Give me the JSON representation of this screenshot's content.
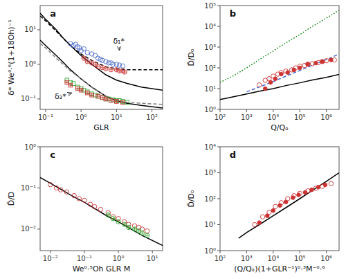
{
  "chart_data": [
    {
      "type": "scatter",
      "title": "a",
      "xlabel": "GLR",
      "ylabel": "δ* We⁰·⁶(1+18Oh)⁻¹",
      "log": true,
      "grid": false,
      "xlim": [
        0.07,
        200
      ],
      "ylim": [
        0.05,
        50
      ],
      "xticks": [
        {
          "value": 0.1,
          "label": "10⁻¹"
        },
        {
          "value": 1,
          "label": "10⁰"
        },
        {
          "value": 10,
          "label": "10¹"
        },
        {
          "value": 100,
          "label": "10²"
        }
      ],
      "yticks": [
        {
          "value": 0.1,
          "label": "10⁻¹"
        },
        {
          "value": 1,
          "label": "10⁰"
        },
        {
          "value": 10,
          "label": "10¹"
        }
      ],
      "series": [
        {
          "type": "line",
          "color": "#000000",
          "line_style": "solid",
          "x": [
            0.07,
            0.1,
            0.2,
            0.3,
            0.5,
            1.0,
            2.0,
            5.0,
            10.0,
            20.0,
            50.0,
            200.0
          ],
          "values": [
            30.0,
            20.0,
            10.0,
            6.0,
            3.5,
            1.8,
            1.0,
            0.5,
            0.35,
            0.28,
            0.22,
            0.18
          ]
        },
        {
          "type": "line",
          "color": "#000000",
          "line_style": "solid",
          "x": [
            0.07,
            0.1,
            0.2,
            0.3,
            0.5,
            1.0,
            2.0,
            5.0,
            10.0,
            20.0,
            50.0,
            200.0
          ],
          "values": [
            5.0,
            3.5,
            1.8,
            1.2,
            0.7,
            0.38,
            0.22,
            0.12,
            0.09,
            0.075,
            0.065,
            0.055
          ]
        },
        {
          "type": "line",
          "color": "#000000",
          "line_style": "dashed",
          "x": [
            0.07,
            0.1,
            0.2,
            0.5,
            1.0,
            2.0,
            5.0,
            10.0,
            20.0,
            50.0,
            200.0
          ],
          "values": [
            25.0,
            18.0,
            9.0,
            3.5,
            2.0,
            1.3,
            0.85,
            0.75,
            0.7,
            0.7,
            0.7
          ]
        },
        {
          "type": "line",
          "color": "#808080",
          "line_style": "dashed",
          "x": [
            0.07,
            0.1,
            0.2,
            0.5,
            1.0,
            2.0,
            5.0,
            10.0,
            20.0,
            50.0,
            200.0
          ],
          "values": [
            4.0,
            3.0,
            1.5,
            0.65,
            0.38,
            0.22,
            0.12,
            0.09,
            0.08,
            0.075,
            0.07
          ]
        },
        {
          "type": "scatter",
          "color": "#4466cc",
          "marker": "circle-open",
          "x": [
            0.5,
            0.6,
            0.7,
            0.8,
            0.9,
            1.0,
            1.2,
            1.5,
            2.0,
            2.5,
            3.0,
            3.5,
            4.0,
            5.0,
            6.0,
            7.0,
            8.0,
            10.0,
            12.0,
            15.0
          ],
          "values": [
            4.0,
            3.5,
            3.8,
            3.2,
            3.0,
            2.5,
            2.8,
            2.2,
            2.0,
            1.8,
            1.5,
            1.4,
            1.3,
            1.2,
            1.1,
            1.1,
            1.0,
            1.0,
            0.95,
            0.9
          ]
        },
        {
          "type": "scatter",
          "color": "#cc3333",
          "marker": "circle-open-plus",
          "x": [
            1.2,
            1.5,
            2.0,
            2.5,
            3.0,
            4.0,
            5.0,
            7.0,
            10.0,
            12.0,
            15.0,
            17.0
          ],
          "values": [
            1.5,
            1.2,
            1.1,
            1.0,
            0.85,
            0.8,
            0.75,
            0.7,
            0.7,
            0.65,
            0.65,
            0.6
          ]
        },
        {
          "type": "scatter",
          "color": "#33aa33",
          "marker": "square-open",
          "x": [
            0.4,
            0.5,
            0.6,
            0.8,
            1.0,
            1.2,
            1.5,
            2.0,
            2.5,
            3.0,
            4.0,
            5.0,
            6.0,
            8.0,
            10.0,
            12.0,
            15.0,
            20.0
          ],
          "values": [
            0.35,
            0.3,
            0.28,
            0.22,
            0.2,
            0.18,
            0.16,
            0.14,
            0.13,
            0.12,
            0.11,
            0.1,
            0.1,
            0.095,
            0.09,
            0.09,
            0.085,
            0.08
          ]
        },
        {
          "type": "scatter",
          "color": "#cc3333",
          "marker": "square-open-plus",
          "x": [
            0.4,
            0.5,
            0.8,
            1.0,
            1.5,
            2.0,
            3.0,
            4.0,
            5.0,
            7.0,
            10.0,
            15.0
          ],
          "values": [
            0.3,
            0.25,
            0.2,
            0.18,
            0.15,
            0.13,
            0.12,
            0.11,
            0.1,
            0.09,
            0.085,
            0.08
          ]
        }
      ],
      "annotations": [
        {
          "text": "δ₁*",
          "xy": [
            12.0,
            2.5
          ],
          "xytext": [
            8.0,
            4.0
          ]
        },
        {
          "text": "δ₂*",
          "xy": [
            0.55,
            0.15
          ],
          "xytext": [
            0.18,
            0.1
          ]
        }
      ]
    },
    {
      "type": "scatter",
      "title": "b",
      "xlabel": "Q/Qₒ",
      "ylabel": "D̄/Dₒ",
      "log": true,
      "grid": false,
      "xlim": [
        100,
        3000000
      ],
      "ylim": [
        1,
        100000
      ],
      "xticks": [
        {
          "value": 100,
          "label": "10²"
        },
        {
          "value": 1000,
          "label": "10³"
        },
        {
          "value": 10000,
          "label": "10⁴"
        },
        {
          "value": 100000,
          "label": "10⁵"
        },
        {
          "value": 1000000,
          "label": "10⁶"
        }
      ],
      "yticks": [
        {
          "value": 1,
          "label": "10⁰"
        },
        {
          "value": 10,
          "label": "10¹"
        },
        {
          "value": 100,
          "label": "10²"
        },
        {
          "value": 1000,
          "label": "10³"
        },
        {
          "value": 10000,
          "label": "10⁴"
        },
        {
          "value": 100000,
          "label": "10⁵"
        }
      ],
      "series": [
        {
          "type": "line",
          "color": "#000000",
          "line_style": "solid",
          "x": [
            100,
            300,
            1000,
            3000,
            10000,
            30000,
            100000,
            300000,
            1000000,
            3000000
          ],
          "values": [
            3.0,
            4.0,
            5.5,
            7.5,
            10.0,
            14.0,
            19.0,
            26.0,
            35.0,
            48.0
          ]
        },
        {
          "type": "line",
          "color": "#008000",
          "line_style": "dotted",
          "x": [
            100,
            300,
            1000,
            3000,
            10000,
            30000,
            100000,
            300000,
            1000000,
            3000000
          ],
          "values": [
            20.0,
            40.0,
            100.0,
            250.0,
            650.0,
            1600.0,
            4000.0,
            10000.0,
            25000.0,
            60000.0
          ]
        },
        {
          "type": "line",
          "color": "#4466cc",
          "line_style": "dashed",
          "x": [
            1000,
            3000,
            10000,
            30000,
            100000,
            300000,
            1000000,
            3000000
          ],
          "values": [
            7.0,
            12.0,
            22.0,
            40.0,
            74.0,
            135.0,
            250.0,
            460.0
          ]
        },
        {
          "type": "scatter",
          "color": "#cc3333",
          "marker": "circle-open",
          "x": [
            3000,
            5000,
            7000,
            10000,
            15000,
            20000,
            30000,
            50000,
            70000,
            100000,
            150000,
            200000,
            300000,
            500000,
            700000,
            1000000,
            2000000
          ],
          "values": [
            15,
            25,
            30,
            40,
            50,
            60,
            70,
            80,
            100,
            120,
            130,
            150,
            160,
            180,
            200,
            220,
            240
          ]
        },
        {
          "type": "scatter",
          "color": "#cc3333",
          "marker": "circle-filled",
          "x": [
            5000,
            8000,
            12000,
            20000,
            35000,
            60000,
            100000,
            200000,
            400000,
            700000,
            1500000
          ],
          "values": [
            10,
            20,
            30,
            50,
            60,
            80,
            100,
            150,
            170,
            200,
            240
          ]
        }
      ]
    },
    {
      "type": "scatter",
      "title": "c",
      "xlabel": "We⁰·⁵Oh GLR M",
      "ylabel": "D̄/D",
      "log": true,
      "grid": false,
      "xlim": [
        0.005,
        20
      ],
      "ylim": [
        0.003,
        1.0
      ],
      "xticks": [
        {
          "value": 0.01,
          "label": "10⁻²"
        },
        {
          "value": 0.1,
          "label": "10⁻¹"
        },
        {
          "value": 1,
          "label": "10⁰"
        },
        {
          "value": 10,
          "label": "10¹"
        }
      ],
      "yticks": [
        {
          "value": 0.01,
          "label": "10⁻²"
        },
        {
          "value": 0.1,
          "label": "10⁻¹"
        },
        {
          "value": 1,
          "label": "10⁰"
        }
      ],
      "series": [
        {
          "type": "line",
          "color": "#000000",
          "line_style": "solid",
          "x": [
            0.005,
            0.01,
            0.05,
            0.1,
            0.5,
            1.0,
            5.0,
            20.0
          ],
          "values": [
            0.18,
            0.13,
            0.06,
            0.045,
            0.02,
            0.015,
            0.007,
            0.004
          ]
        },
        {
          "type": "scatter",
          "color": "#cc3333",
          "marker": "circle-open",
          "x": [
            0.01,
            0.015,
            0.02,
            0.03,
            0.05,
            0.07,
            0.1,
            0.15,
            0.2,
            0.3,
            0.5,
            0.7,
            1.0,
            1.5,
            2.0,
            3.0,
            4.0,
            5.0,
            7.0
          ],
          "values": [
            0.12,
            0.1,
            0.09,
            0.08,
            0.065,
            0.055,
            0.05,
            0.04,
            0.035,
            0.03,
            0.025,
            0.02,
            0.018,
            0.015,
            0.013,
            0.012,
            0.011,
            0.01,
            0.009
          ]
        },
        {
          "type": "scatter",
          "color": "#33aa33",
          "marker": "circle-open-plus",
          "x": [
            0.5,
            0.7,
            1.0,
            1.5,
            2.0,
            3.0,
            4.0,
            5.0,
            7.0
          ],
          "values": [
            0.022,
            0.018,
            0.015,
            0.013,
            0.011,
            0.01,
            0.009,
            0.008,
            0.007
          ]
        }
      ]
    },
    {
      "type": "scatter",
      "title": "d",
      "xlabel": "(Q/Qₒ)(1+GLR⁻¹)⁰·³M⁻⁰·⁶",
      "ylabel": "D̄/Dₒ",
      "log": true,
      "grid": false,
      "xlim": [
        100,
        3000000
      ],
      "ylim": [
        1,
        10000
      ],
      "xticks": [
        {
          "value": 100,
          "label": "10²"
        },
        {
          "value": 1000,
          "label": "10³"
        },
        {
          "value": 10000,
          "label": "10⁴"
        },
        {
          "value": 100000,
          "label": "10⁵"
        },
        {
          "value": 1000000,
          "label": "10⁶"
        }
      ],
      "yticks": [
        {
          "value": 1,
          "label": "10⁰"
        },
        {
          "value": 10,
          "label": "10¹"
        },
        {
          "value": 100,
          "label": "10²"
        },
        {
          "value": 1000,
          "label": "10³"
        },
        {
          "value": 10000,
          "label": "10⁴"
        }
      ],
      "series": [
        {
          "type": "line",
          "color": "#000000",
          "line_style": "solid",
          "x": [
            500,
            1000,
            3000,
            10000,
            30000,
            100000,
            300000,
            1000000,
            3000000
          ],
          "values": [
            3.0,
            5.0,
            10.0,
            22.0,
            45.0,
            100.0,
            210.0,
            470.0,
            1000.0
          ]
        },
        {
          "type": "scatter",
          "color": "#cc3333",
          "marker": "circle-open",
          "x": [
            2000,
            4000,
            7000,
            12000,
            20000,
            35000,
            60000,
            100000,
            200000,
            400000,
            700000,
            1500000
          ],
          "values": [
            10,
            20,
            30,
            50,
            70,
            100,
            130,
            160,
            200,
            250,
            300,
            380
          ]
        },
        {
          "type": "scatter",
          "color": "#cc3333",
          "marker": "circle-filled",
          "x": [
            3000,
            6000,
            10000,
            18000,
            30000,
            55000,
            90000,
            160000,
            280000,
            500000,
            900000
          ],
          "values": [
            12,
            22,
            35,
            55,
            75,
            110,
            140,
            175,
            220,
            280,
            340
          ]
        }
      ]
    }
  ]
}
